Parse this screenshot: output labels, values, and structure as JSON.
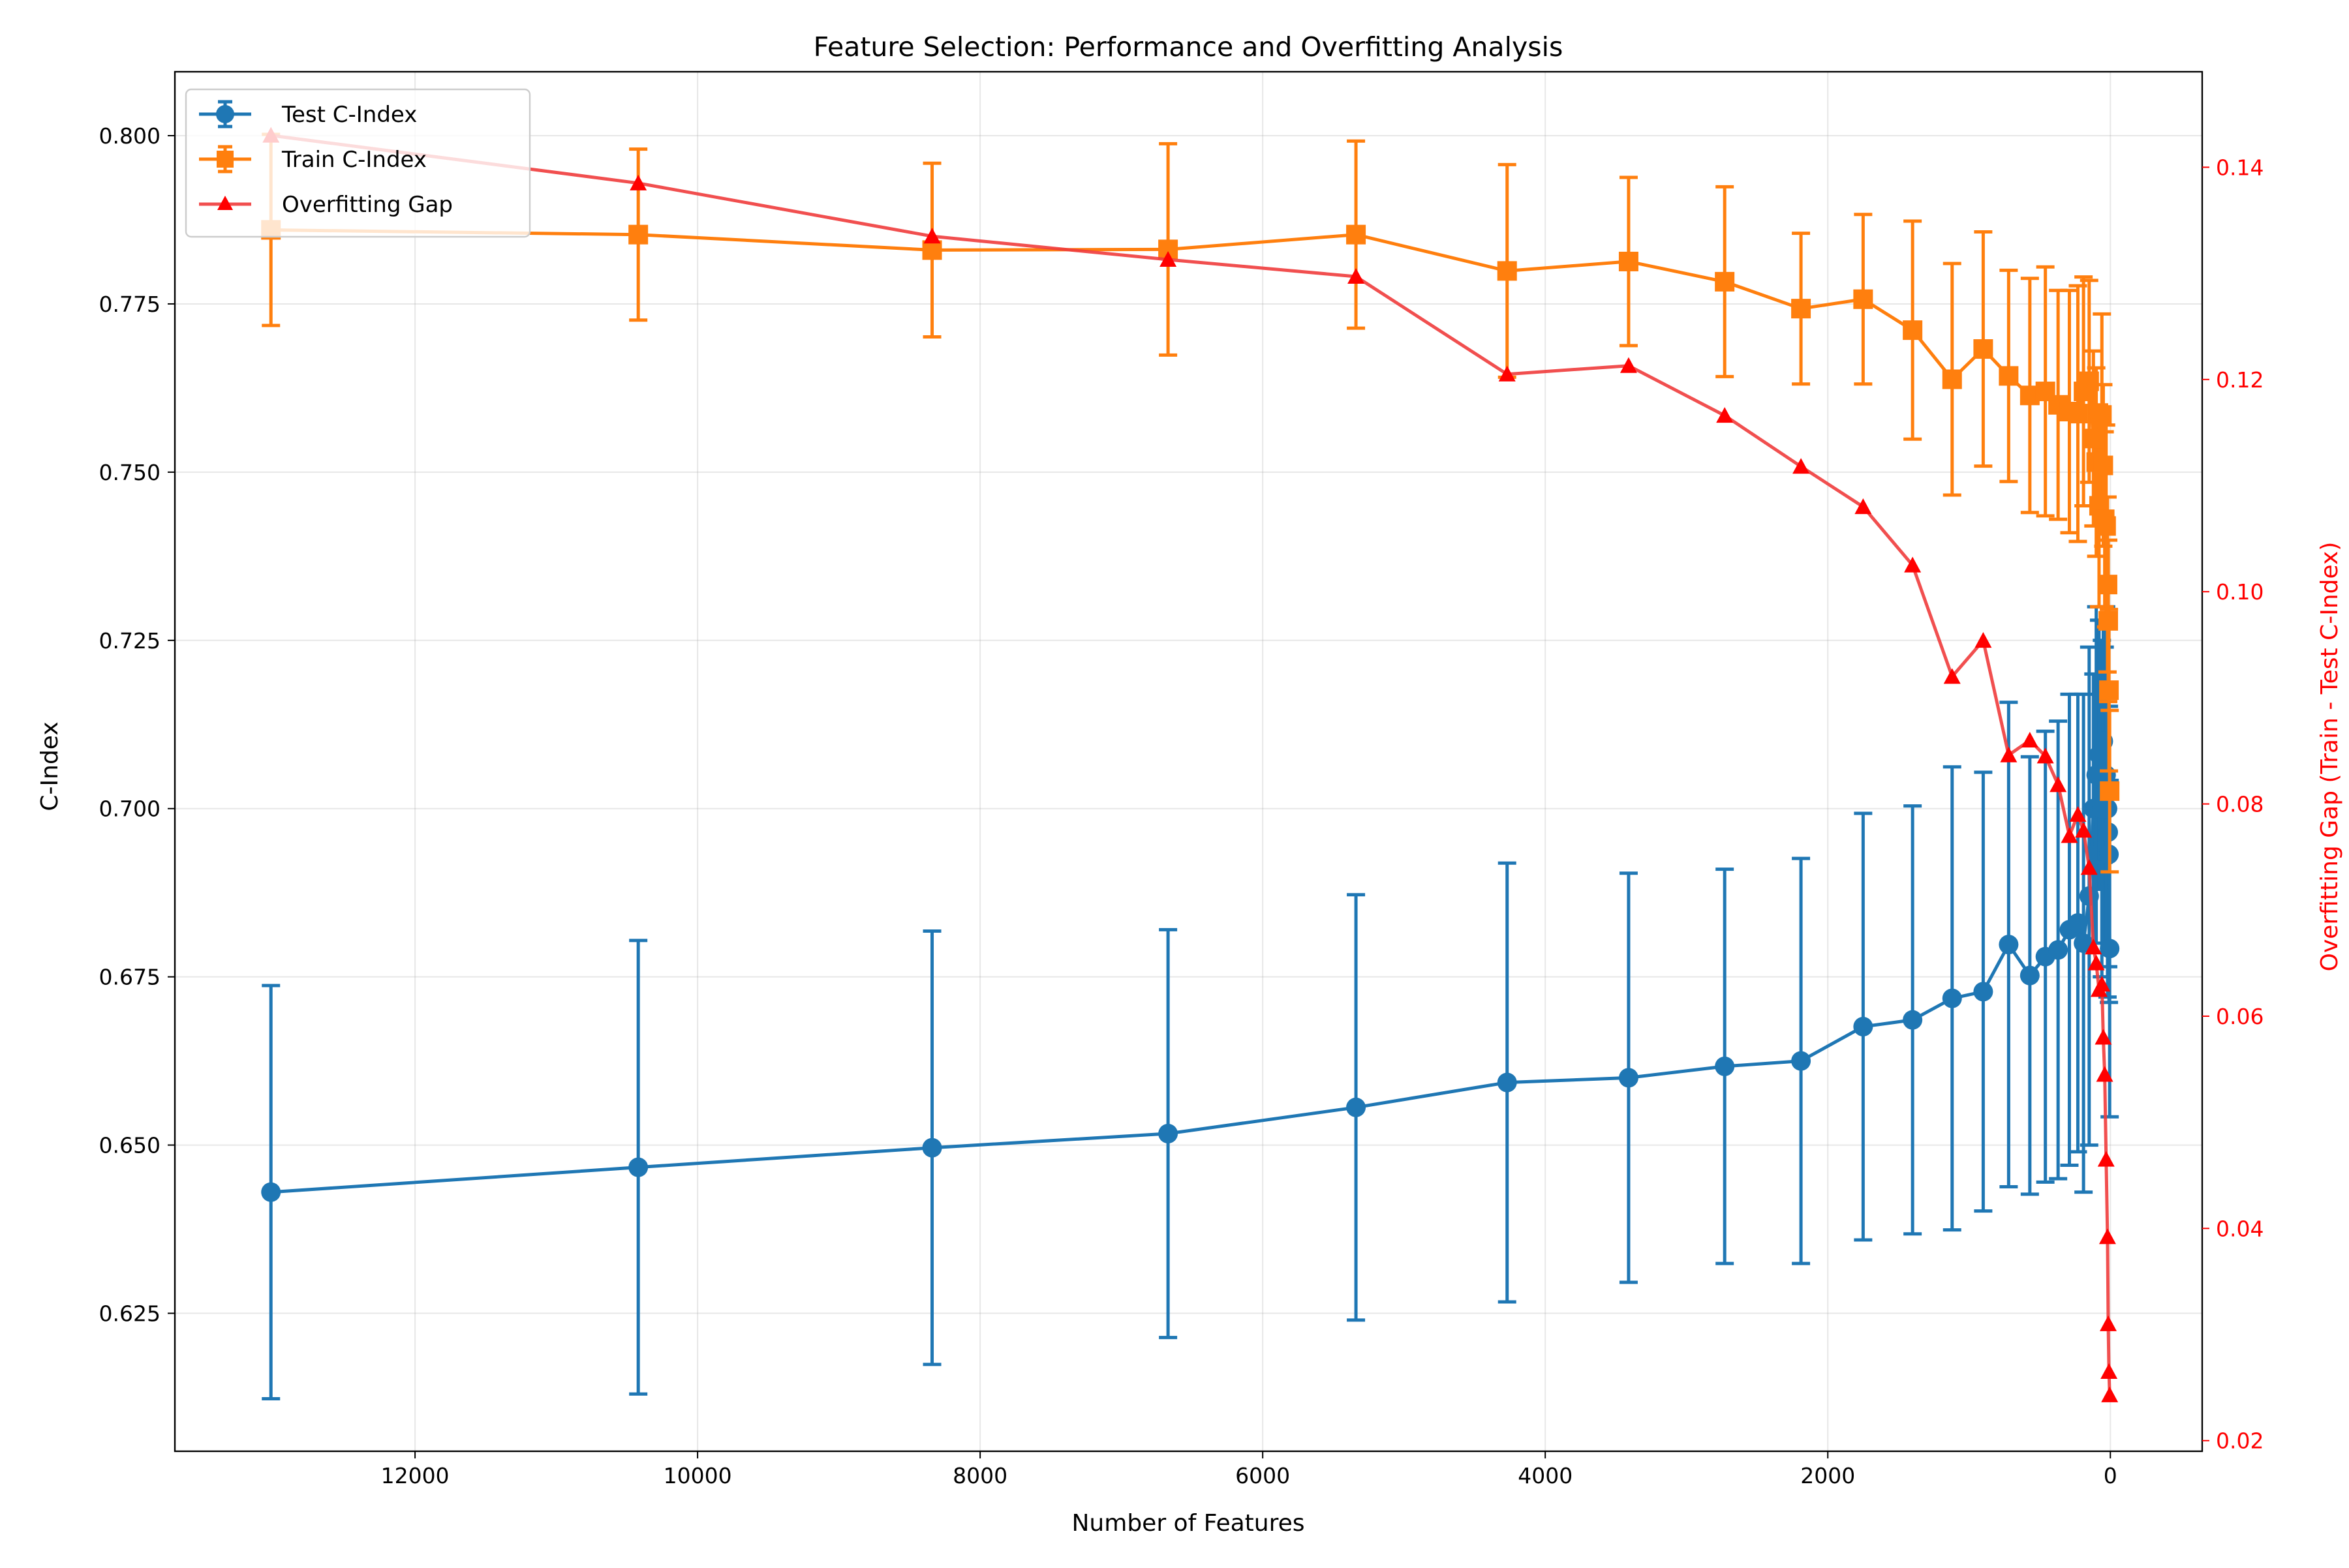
{
  "chart_data": {
    "type": "line",
    "title": "Feature Selection: Performance and Overfitting Analysis",
    "xlabel": "Number of Features",
    "ylabel": "C-Index",
    "y2label": "Overfitting Gap (Train - Test C-Index)",
    "xlim": [
      13700,
      -650
    ],
    "x_inverted": true,
    "ylim": [
      0.6045,
      0.8095
    ],
    "y2lim": [
      0.019,
      0.149
    ],
    "xticks": [
      12000,
      10000,
      8000,
      6000,
      4000,
      2000,
      0
    ],
    "yticks": [
      0.625,
      0.65,
      0.675,
      0.7,
      0.725,
      0.75,
      0.775,
      0.8
    ],
    "y2ticks": [
      0.02,
      0.04,
      0.06,
      0.08,
      0.1,
      0.12,
      0.14
    ],
    "grid": true,
    "legend_position": "upper-left",
    "colors": {
      "test": "#1f77b4",
      "train": "#ff7f0e",
      "gap": "#f03c3c",
      "gap_marker": "#ff0000",
      "right_axis": "#ff0000"
    },
    "x": [
      13020,
      10420,
      8340,
      6670,
      5340,
      4270,
      3410,
      2730,
      2190,
      1750,
      1400,
      1120,
      900,
      720,
      570,
      460,
      370,
      290,
      230,
      190,
      150,
      120,
      100,
      80,
      60,
      50,
      40,
      30,
      20,
      15,
      10,
      5
    ],
    "series": [
      {
        "name": "Test C-Index",
        "marker": "circle",
        "axis": "left",
        "values": [
          0.643,
          0.6467,
          0.6496,
          0.6517,
          0.6556,
          0.6593,
          0.66,
          0.6617,
          0.6625,
          0.6676,
          0.6686,
          0.6718,
          0.6728,
          0.6798,
          0.6752,
          0.678,
          0.679,
          0.682,
          0.683,
          0.68,
          0.687,
          0.7,
          0.705,
          0.708,
          0.7,
          0.71,
          0.702,
          0.705,
          0.7,
          0.6965,
          0.6932,
          0.6792
        ],
        "errors": [
          0.0307,
          0.0337,
          0.0322,
          0.0303,
          0.0316,
          0.0326,
          0.0304,
          0.0293,
          0.0301,
          0.0317,
          0.0318,
          0.0344,
          0.0326,
          0.036,
          0.0325,
          0.0335,
          0.034,
          0.035,
          0.034,
          0.037,
          0.037,
          0.02,
          0.025,
          0.02,
          0.025,
          0.018,
          0.022,
          0.025,
          0.028,
          0.02,
          0.022,
          0.025
        ]
      },
      {
        "name": "Train C-Index",
        "marker": "square",
        "axis": "left",
        "values": [
          0.786,
          0.7853,
          0.783,
          0.7831,
          0.7853,
          0.7799,
          0.7813,
          0.7783,
          0.7743,
          0.7757,
          0.7711,
          0.7638,
          0.7683,
          0.7643,
          0.7614,
          0.762,
          0.76,
          0.759,
          0.7587,
          0.762,
          0.7635,
          0.755,
          0.7515,
          0.745,
          0.7585,
          0.751,
          0.743,
          0.742,
          0.7333,
          0.7279,
          0.7176,
          0.7026
        ],
        "errors": [
          0.0142,
          0.0127,
          0.0129,
          0.0157,
          0.0139,
          0.0158,
          0.0125,
          0.0141,
          0.0112,
          0.0126,
          0.0162,
          0.0172,
          0.0174,
          0.0157,
          0.0174,
          0.0185,
          0.017,
          0.018,
          0.019,
          0.017,
          0.015,
          0.013,
          0.014,
          0.015,
          0.015,
          0.012,
          0.013,
          0.015,
          0.013,
          0.012,
          0.012,
          0.012
        ]
      },
      {
        "name": "Overfitting Gap",
        "marker": "triangle",
        "axis": "right",
        "values": [
          0.143,
          0.1385,
          0.1335,
          0.1313,
          0.1297,
          0.1205,
          0.1213,
          0.1166,
          0.1118,
          0.108,
          0.1025,
          0.092,
          0.0954,
          0.0846,
          0.086,
          0.0845,
          0.0818,
          0.077,
          0.079,
          0.0775,
          0.074,
          0.0665,
          0.065,
          0.0625,
          0.063,
          0.058,
          0.0545,
          0.0465,
          0.0392,
          0.031,
          0.0265,
          0.0243
        ]
      }
    ]
  }
}
